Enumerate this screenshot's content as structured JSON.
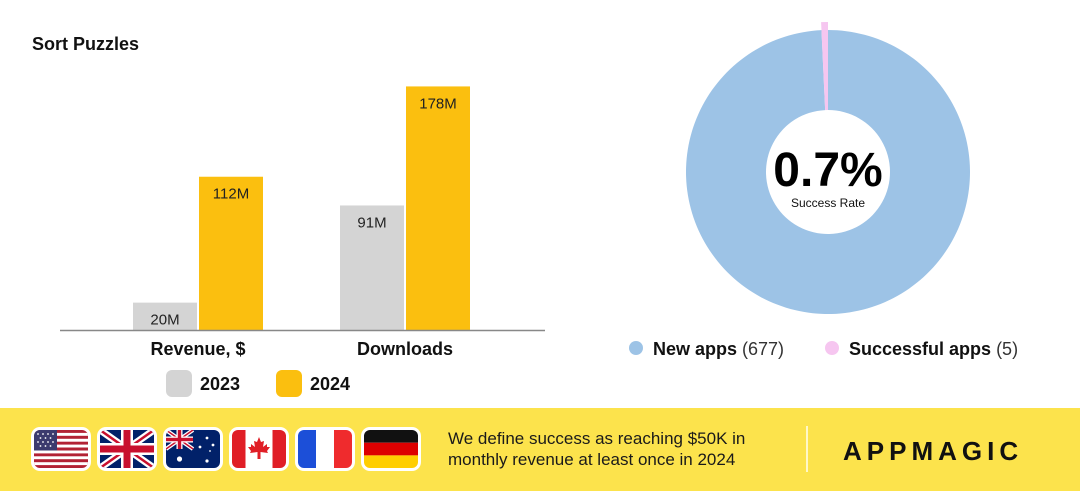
{
  "title": "Sort Puzzles",
  "chart_data": [
    {
      "type": "bar",
      "categories": [
        "Revenue, $",
        "Downloads"
      ],
      "series": [
        {
          "name": "2023",
          "values": [
            20,
            91
          ],
          "labels": [
            "20M",
            "91M"
          ],
          "color": "#d4d4d4"
        },
        {
          "name": "2024",
          "values": [
            112,
            178
          ],
          "labels": [
            "112M",
            "178M"
          ],
          "color": "#fbbf0f"
        }
      ],
      "unit": "M",
      "ylim": [
        0,
        190
      ],
      "legend_position": "bottom",
      "grid": false
    },
    {
      "type": "pie",
      "subtype": "donut",
      "center_value": "0.7%",
      "center_label": "Success Rate",
      "slices": [
        {
          "name": "New apps",
          "count_label": "(677)",
          "value": 677,
          "color": "#9dc3e6"
        },
        {
          "name": "Successful apps",
          "count_label": "(5)",
          "value": 5,
          "color": "#f6c6f0"
        }
      ],
      "legend_position": "bottom"
    }
  ],
  "footer": {
    "flags": [
      {
        "name": "us-flag"
      },
      {
        "name": "uk-flag"
      },
      {
        "name": "australia-flag"
      },
      {
        "name": "canada-flag"
      },
      {
        "name": "france-flag"
      },
      {
        "name": "germany-flag"
      }
    ],
    "text_line1": "We define success as reaching $50K in",
    "text_line2": "monthly revenue at least once in 2024",
    "brand": "APPMAGIC",
    "background": "#fce34c"
  }
}
